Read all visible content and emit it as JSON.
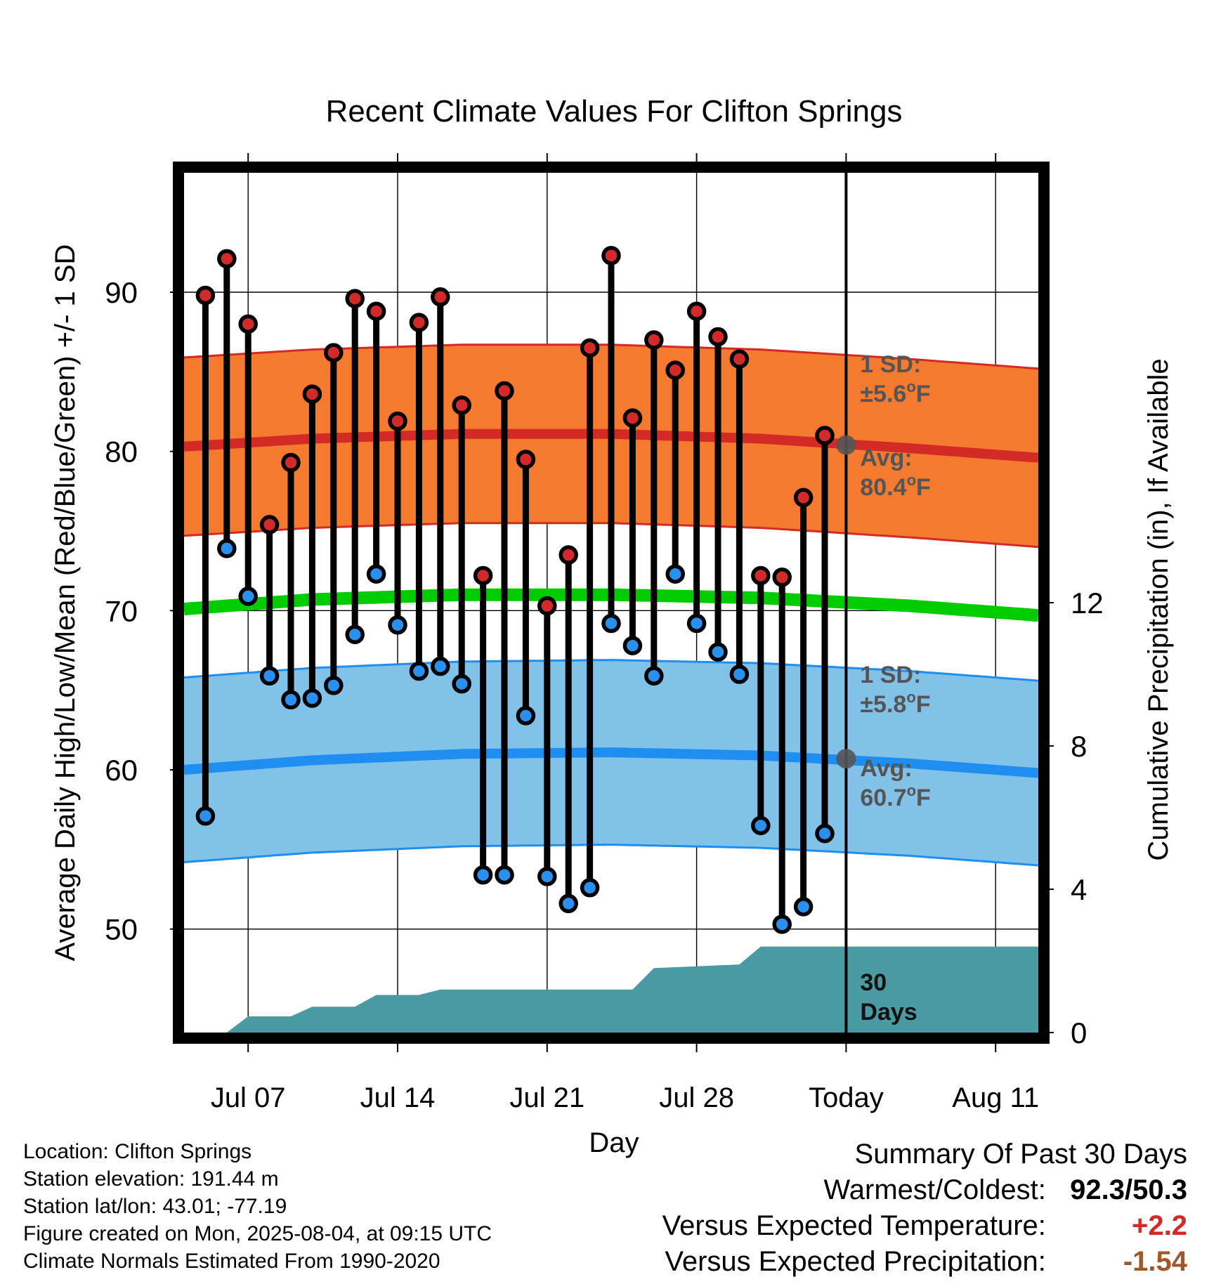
{
  "chart_data": {
    "type": "line",
    "title": "Recent Climate Values For Clifton Springs",
    "xlabel": "Day",
    "ylabel": "Average Daily High/Low/Mean (Red/Blue/Green) +/- 1 SD",
    "y2label": "Cumulative Precipitation (in), If Available",
    "x_range": [
      "2025-07-04",
      "2025-08-13"
    ],
    "ylim": [
      43.5,
      97.5
    ],
    "y_ticks": [
      50,
      60,
      70,
      80,
      90
    ],
    "y2lim": [
      0,
      24
    ],
    "y2_ticks": [
      0,
      4,
      8,
      12
    ],
    "x_ticks": [
      {
        "date": "2025-07-07",
        "label": "Jul 07"
      },
      {
        "date": "2025-07-14",
        "label": "Jul 14"
      },
      {
        "date": "2025-07-21",
        "label": "Jul 21"
      },
      {
        "date": "2025-07-28",
        "label": "Jul 28"
      },
      {
        "date": "2025-08-04",
        "label": "Today"
      },
      {
        "date": "2025-08-11",
        "label": "Aug 11"
      }
    ],
    "grid": true,
    "today_marker": "2025-08-04",
    "daily_observations": {
      "dates": [
        "2025-07-05",
        "2025-07-06",
        "2025-07-07",
        "2025-07-08",
        "2025-07-09",
        "2025-07-10",
        "2025-07-11",
        "2025-07-12",
        "2025-07-13",
        "2025-07-14",
        "2025-07-15",
        "2025-07-16",
        "2025-07-17",
        "2025-07-18",
        "2025-07-19",
        "2025-07-20",
        "2025-07-21",
        "2025-07-22",
        "2025-07-23",
        "2025-07-24",
        "2025-07-25",
        "2025-07-26",
        "2025-07-27",
        "2025-07-28",
        "2025-07-29",
        "2025-07-30",
        "2025-07-31",
        "2025-08-01",
        "2025-08-02",
        "2025-08-03"
      ],
      "high": [
        89.8,
        92.1,
        88.0,
        75.4,
        79.3,
        83.6,
        86.2,
        89.6,
        88.8,
        81.9,
        88.1,
        89.7,
        82.9,
        72.2,
        83.8,
        79.5,
        70.3,
        73.5,
        86.5,
        92.3,
        82.1,
        87.0,
        85.1,
        88.8,
        87.2,
        85.8,
        72.2,
        72.1,
        77.1,
        81.0
      ],
      "low": [
        57.1,
        73.9,
        70.9,
        65.9,
        64.4,
        64.5,
        65.3,
        68.5,
        72.3,
        69.1,
        66.2,
        66.5,
        65.4,
        53.4,
        53.4,
        63.4,
        53.3,
        51.6,
        52.6,
        69.2,
        67.8,
        65.9,
        72.3,
        69.2,
        67.4,
        66.0,
        56.5,
        50.3,
        51.4,
        56.0
      ]
    },
    "normals": {
      "dates": [
        "2025-07-04",
        "2025-07-10",
        "2025-07-17",
        "2025-07-24",
        "2025-07-31",
        "2025-08-07",
        "2025-08-13"
      ],
      "high_avg": [
        80.3,
        80.8,
        81.1,
        81.1,
        80.8,
        80.2,
        79.6
      ],
      "high_sd": 5.6,
      "low_avg": [
        60.0,
        60.6,
        61.0,
        61.1,
        60.9,
        60.4,
        59.8
      ],
      "low_sd": 5.8,
      "mean_avg": [
        70.1,
        70.7,
        71.0,
        71.0,
        70.8,
        70.3,
        69.7
      ]
    },
    "precipitation_cumulative": {
      "dates": [
        "2025-07-06",
        "2025-07-07",
        "2025-07-09",
        "2025-07-10",
        "2025-07-12",
        "2025-07-13",
        "2025-07-15",
        "2025-07-16",
        "2025-07-25",
        "2025-07-26",
        "2025-07-30",
        "2025-07-31",
        "2025-08-13"
      ],
      "values": [
        0.0,
        0.45,
        0.45,
        0.72,
        0.72,
        1.05,
        1.05,
        1.2,
        1.2,
        1.8,
        1.9,
        2.4,
        2.4
      ]
    },
    "annotations": {
      "high_sd": {
        "line1": "1 SD:",
        "line2": "±5.6",
        "unit": "F"
      },
      "high_avg": {
        "line1": "Avg:",
        "line2": "80.4",
        "unit": "F",
        "value": 80.4
      },
      "low_sd": {
        "line1": "1 SD:",
        "line2": "±5.8",
        "unit": "F"
      },
      "low_avg": {
        "line1": "Avg:",
        "line2": "60.7",
        "unit": "F",
        "value": 60.7
      },
      "window": {
        "line1": "30",
        "line2": "Days"
      }
    },
    "colors": {
      "high_band": "#f47a30",
      "high_line": "#d42a25",
      "low_band": "#82c1e8",
      "low_line": "#1e8ef0",
      "mean_line": "#00cc00",
      "precip": "#4a9aa3",
      "high_point": "#d22a2a",
      "low_point": "#2a90ee",
      "annotation": "#555555"
    }
  },
  "footer": {
    "location": "Location: Clifton Springs",
    "elevation": "Station elevation: 191.44 m",
    "latlon": "Station lat/lon: 43.01; -77.19",
    "created": "Figure created on Mon, 2025-08-04, at 09:15 UTC",
    "normals": "Climate Normals Estimated From 1990-2020"
  },
  "summary": {
    "title": "Summary Of Past 30 Days",
    "warmest_label": "Warmest/Coldest:",
    "warmest_value": "92.3/50.3",
    "temp_label": "Versus Expected Temperature:",
    "temp_value": "+2.2",
    "temp_color": "#d42a25",
    "precip_label": "Versus Expected Precipitation:",
    "precip_value": "-1.54",
    "precip_color": "#a0582a"
  }
}
